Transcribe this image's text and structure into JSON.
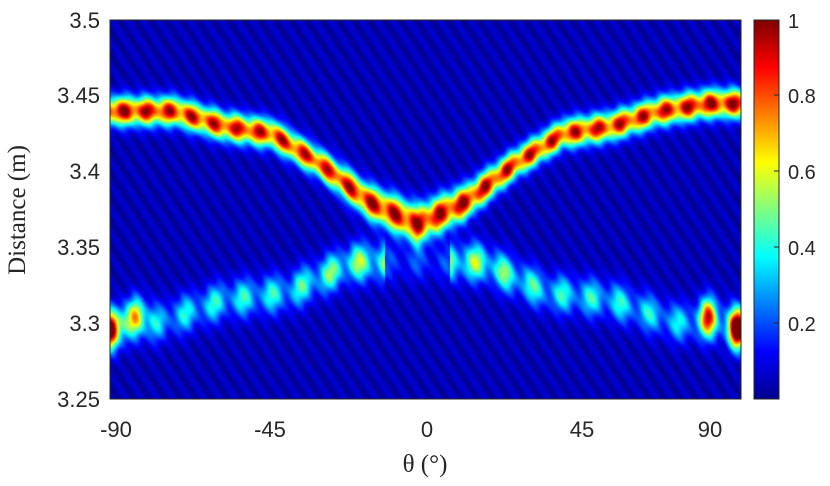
{
  "chart_data": {
    "type": "heatmap",
    "title": "",
    "xlabel": "θ (°)",
    "ylabel": "Distance (m)",
    "xlim": [
      -95,
      100
    ],
    "ylim": [
      3.25,
      3.5
    ],
    "xticks": [
      "-90",
      "-45",
      "0",
      "45",
      "90"
    ],
    "xtick_values": [
      -90,
      -45,
      0,
      45,
      90
    ],
    "yticks": [
      "3.5",
      "3.45",
      "3.4",
      "3.35",
      "3.3",
      "3.25"
    ],
    "ytick_values": [
      3.5,
      3.45,
      3.4,
      3.35,
      3.3,
      3.25
    ],
    "colorbar": {
      "colormap": "jet",
      "range": [
        0,
        1
      ],
      "ticks": [
        "1",
        "0.8",
        "0.6",
        "0.4",
        "0.2"
      ],
      "tick_values": [
        1,
        0.8,
        0.6,
        0.4,
        0.2
      ]
    },
    "main_ridge": [
      {
        "theta": -90,
        "distance": 3.44,
        "value": 1.0
      },
      {
        "theta": -75,
        "distance": 3.44,
        "value": 0.95
      },
      {
        "theta": -60,
        "distance": 3.43,
        "value": 0.95
      },
      {
        "theta": -45,
        "distance": 3.425,
        "value": 0.95
      },
      {
        "theta": -30,
        "distance": 3.405,
        "value": 0.95
      },
      {
        "theta": -15,
        "distance": 3.38,
        "value": 1.0
      },
      {
        "theta": 0,
        "distance": 3.365,
        "value": 1.0
      },
      {
        "theta": 15,
        "distance": 3.38,
        "value": 1.0
      },
      {
        "theta": 30,
        "distance": 3.405,
        "value": 0.95
      },
      {
        "theta": 45,
        "distance": 3.425,
        "value": 0.95
      },
      {
        "theta": 60,
        "distance": 3.43,
        "value": 0.95
      },
      {
        "theta": 75,
        "distance": 3.44,
        "value": 0.95
      },
      {
        "theta": 90,
        "distance": 3.445,
        "value": 1.0
      }
    ],
    "secondary_band": [
      {
        "theta": -80,
        "distance": 3.3,
        "value": 0.35
      },
      {
        "theta": -60,
        "distance": 3.315,
        "value": 0.4
      },
      {
        "theta": -40,
        "distance": 3.32,
        "value": 0.4
      },
      {
        "theta": -20,
        "distance": 3.34,
        "value": 0.55
      },
      {
        "theta": 20,
        "distance": 3.34,
        "value": 0.55
      },
      {
        "theta": 40,
        "distance": 3.32,
        "value": 0.4
      },
      {
        "theta": 60,
        "distance": 3.315,
        "value": 0.4
      },
      {
        "theta": 80,
        "distance": 3.3,
        "value": 0.35
      }
    ],
    "edge_spots": [
      {
        "theta": -95,
        "distance": 3.295,
        "value": 1.0
      },
      {
        "theta": -87,
        "distance": 3.305,
        "value": 0.5
      },
      {
        "theta": 90,
        "distance": 3.305,
        "value": 0.6
      },
      {
        "theta": 99,
        "distance": 3.295,
        "value": 1.0
      }
    ]
  }
}
